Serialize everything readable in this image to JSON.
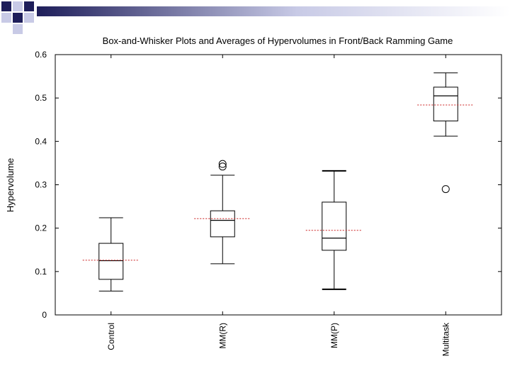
{
  "colors": {
    "corner_dark": "#1e1e5a",
    "corner_light": "#c8cae6",
    "mean_line": "#cc2222",
    "box": "#000000"
  },
  "chart_data": {
    "type": "box",
    "title": "Box-and-Whisker Plots and Averages of Hypervolumes in Front/Back Ramming Game",
    "xlabel": "",
    "ylabel": "Hypervolume",
    "ylim": [
      0,
      0.6
    ],
    "yticks": [
      0,
      0.1,
      0.2,
      0.3,
      0.4,
      0.5,
      0.6
    ],
    "ytick_labels": [
      "0",
      "0.1",
      "0.2",
      "0.3",
      "0.4",
      "0.5",
      "0.6"
    ],
    "grid": false,
    "categories": [
      "Control",
      "MM(R)",
      "MM(P)",
      "Multitask"
    ],
    "boxes": [
      {
        "name": "Control",
        "whisker_low": 0.055,
        "q1": 0.082,
        "median": 0.125,
        "q3": 0.165,
        "whisker_high": 0.224,
        "mean": 0.126,
        "outliers": []
      },
      {
        "name": "MM(R)",
        "whisker_low": 0.118,
        "q1": 0.18,
        "median": 0.218,
        "q3": 0.24,
        "whisker_high": 0.322,
        "mean": 0.222,
        "outliers": [
          0.342,
          0.348
        ]
      },
      {
        "name": "MM(P)",
        "whisker_low": 0.059,
        "q1": 0.149,
        "median": 0.177,
        "q3": 0.26,
        "whisker_high": 0.332,
        "mean": 0.195,
        "outliers": []
      },
      {
        "name": "Multitask",
        "whisker_low": 0.412,
        "q1": 0.447,
        "median": 0.505,
        "q3": 0.525,
        "whisker_high": 0.558,
        "mean": 0.484,
        "outliers": [
          0.29
        ]
      }
    ]
  }
}
